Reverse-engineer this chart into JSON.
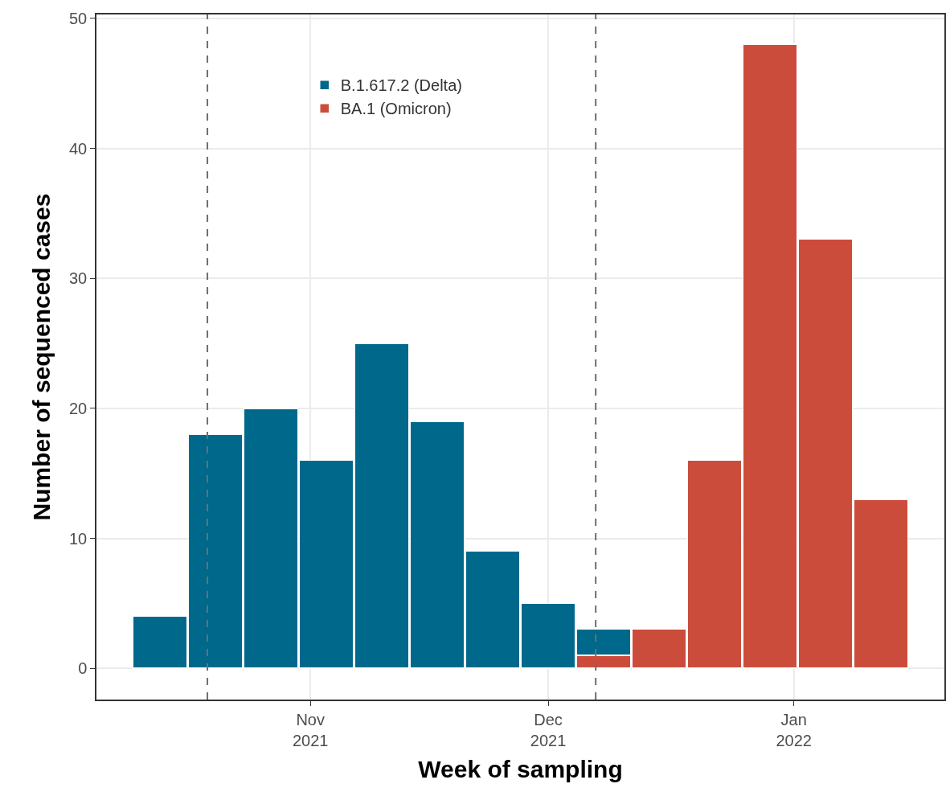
{
  "chart_data": {
    "type": "bar",
    "stacked": true,
    "xlabel": "Week of sampling",
    "ylabel": "Number of sequenced cases",
    "x": [
      "2021-10-13",
      "2021-10-20",
      "2021-10-27",
      "2021-11-03",
      "2021-11-10",
      "2021-11-17",
      "2021-11-24",
      "2021-12-01",
      "2021-12-08",
      "2021-12-15",
      "2021-12-22",
      "2021-12-29",
      "2022-01-05",
      "2022-01-12"
    ],
    "series": [
      {
        "name": "BA.1 (Omicron)",
        "color": "#cc4c3b",
        "values": [
          null,
          null,
          null,
          null,
          null,
          null,
          null,
          null,
          1,
          3,
          16,
          48,
          33,
          13
        ]
      },
      {
        "name": "B.1.617.2 (Delta)",
        "color": "#00698b",
        "values": [
          4,
          18,
          20,
          16,
          25,
          19,
          9,
          5,
          2,
          null,
          null,
          null,
          null,
          null
        ]
      }
    ],
    "xlim": [
      "2021-10-05",
      "2022-01-20"
    ],
    "xticks": [
      {
        "value": "2021-11-01",
        "label": "Nov\n2021"
      },
      {
        "value": "2021-12-01",
        "label": "Dec\n2021"
      },
      {
        "value": "2022-01-01",
        "label": "Jan\n2022"
      }
    ],
    "ylim": [
      -2.4,
      50.3
    ],
    "yticks": [
      0,
      10,
      20,
      30,
      40,
      50
    ],
    "ref_lines": [
      {
        "axis": "x",
        "value": "2021-10-19",
        "color": "#6e6e6e",
        "line_style": "dashed"
      },
      {
        "axis": "x",
        "value": "2021-12-07",
        "color": "#6e6e6e",
        "line_style": "dashed"
      }
    ],
    "grid": true,
    "legend": "top"
  }
}
